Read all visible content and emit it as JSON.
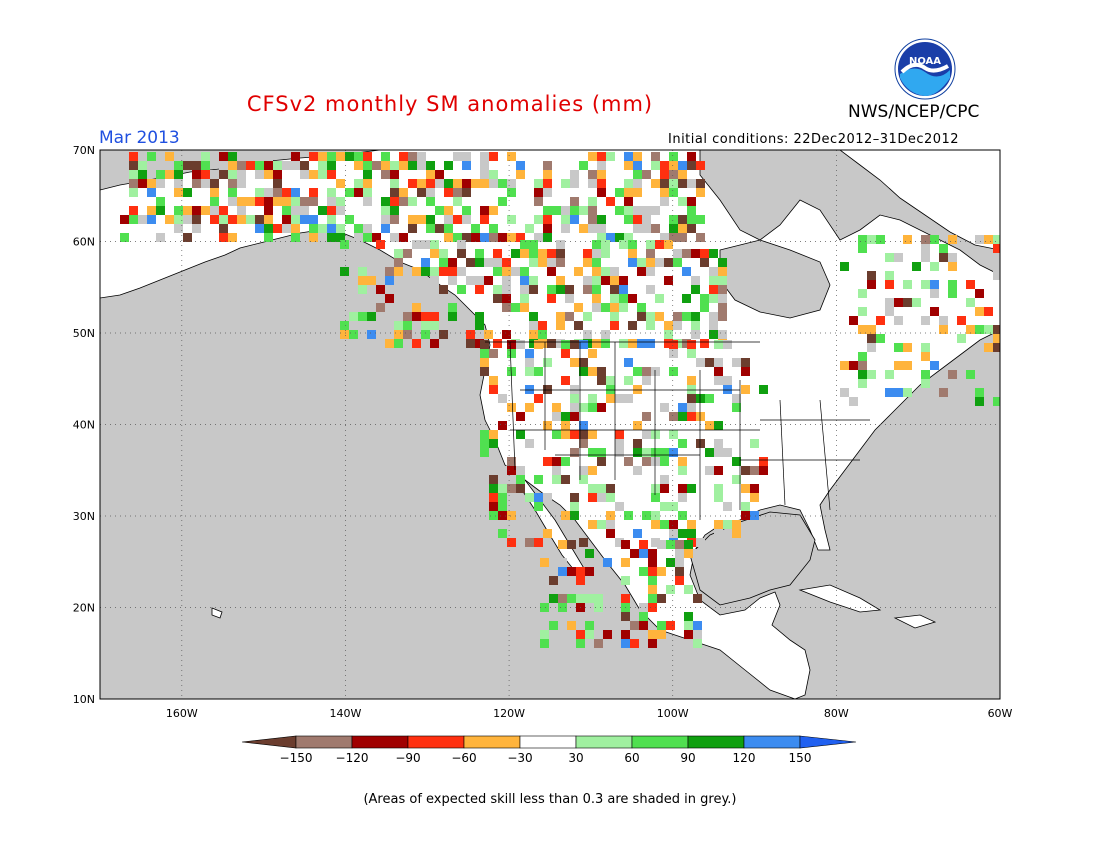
{
  "header": {
    "title": "CFSv2 monthly SM anomalies (mm)",
    "month": "Mar 2013",
    "initial_conditions": "Initial conditions: 22Dec2012–31Dec2012",
    "agency": "NWS/NCEP/CPC",
    "logo_text": "NOAA"
  },
  "map": {
    "lat_labels": [
      "70N",
      "60N",
      "50N",
      "40N",
      "30N",
      "20N",
      "10N"
    ],
    "lon_labels": [
      "160W",
      "140W",
      "120W",
      "100W",
      "80W",
      "60W"
    ],
    "grid": "dotted",
    "ocean_color": "#c8c8c8",
    "land_color": "#ffffff"
  },
  "colorbar": {
    "colors": [
      "#6b3d2e",
      "#a07a6e",
      "#a00000",
      "#ff3010",
      "#ffb43c",
      "#ffffff",
      "#a0f0a0",
      "#50e050",
      "#10a010",
      "#3c8cf0",
      "#2060f0"
    ],
    "labels": [
      "−150",
      "−120",
      "−90",
      "−60",
      "−30",
      "30",
      "60",
      "90",
      "120",
      "150"
    ]
  },
  "footer": {
    "note": "(Areas of expected skill less than 0.3 are shaded in grey.)"
  }
}
